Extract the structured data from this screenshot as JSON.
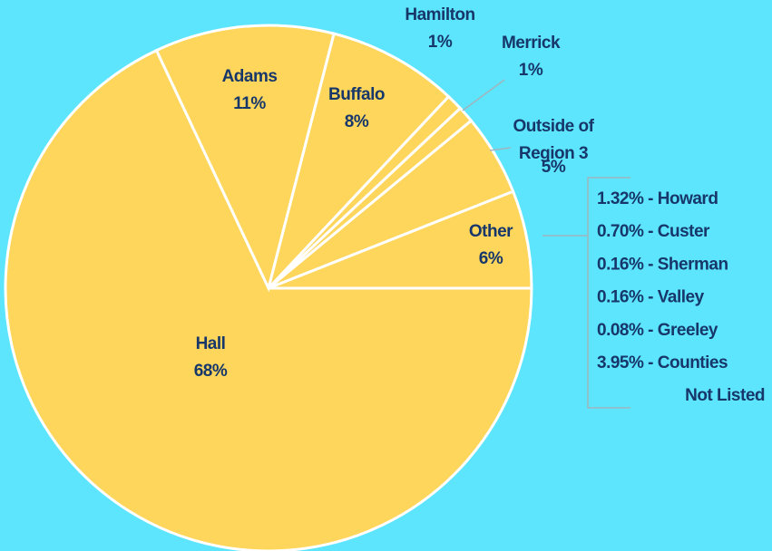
{
  "chart_data": {
    "type": "pie",
    "categories": [
      "Hall",
      "Adams",
      "Buffalo",
      "Hamilton",
      "Merrick",
      "Outside of Region 3",
      "Other"
    ],
    "values": [
      68,
      11,
      8,
      1,
      1,
      5,
      6
    ],
    "value_labels": [
      "68%",
      "11%",
      "8%",
      "1%",
      "1%",
      "5%",
      "6%"
    ],
    "color": "#fed65c",
    "annotations": [
      "1.32% - Howard",
      "0.70% - Custer",
      "0.16% - Sherman",
      "0.16% - Valley",
      "0.08% - Greeley",
      "3.95% - Counties",
      "Not Listed"
    ]
  }
}
